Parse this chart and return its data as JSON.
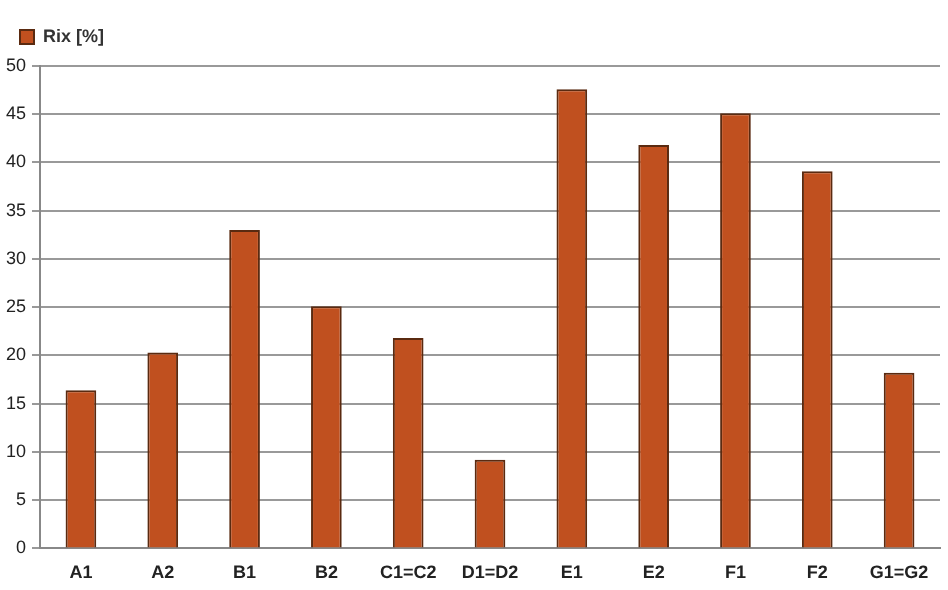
{
  "chart_data": {
    "type": "bar",
    "categories": [
      "A1",
      "A2",
      "B1",
      "B2",
      "C1=C2",
      "D1=D2",
      "E1",
      "E2",
      "F1",
      "F2",
      "G1=G2"
    ],
    "series": [
      {
        "name": "Rix [%]",
        "color": "#c0501f",
        "values": [
          16.4,
          20.3,
          33.0,
          25.1,
          21.8,
          9.2,
          47.6,
          41.8,
          45.1,
          39.1,
          18.2
        ]
      }
    ],
    "ylim": [
      0,
      50
    ],
    "yticks": [
      0,
      5,
      10,
      15,
      20,
      25,
      30,
      35,
      40,
      45,
      50
    ],
    "grid": "y",
    "legend": "top left"
  }
}
